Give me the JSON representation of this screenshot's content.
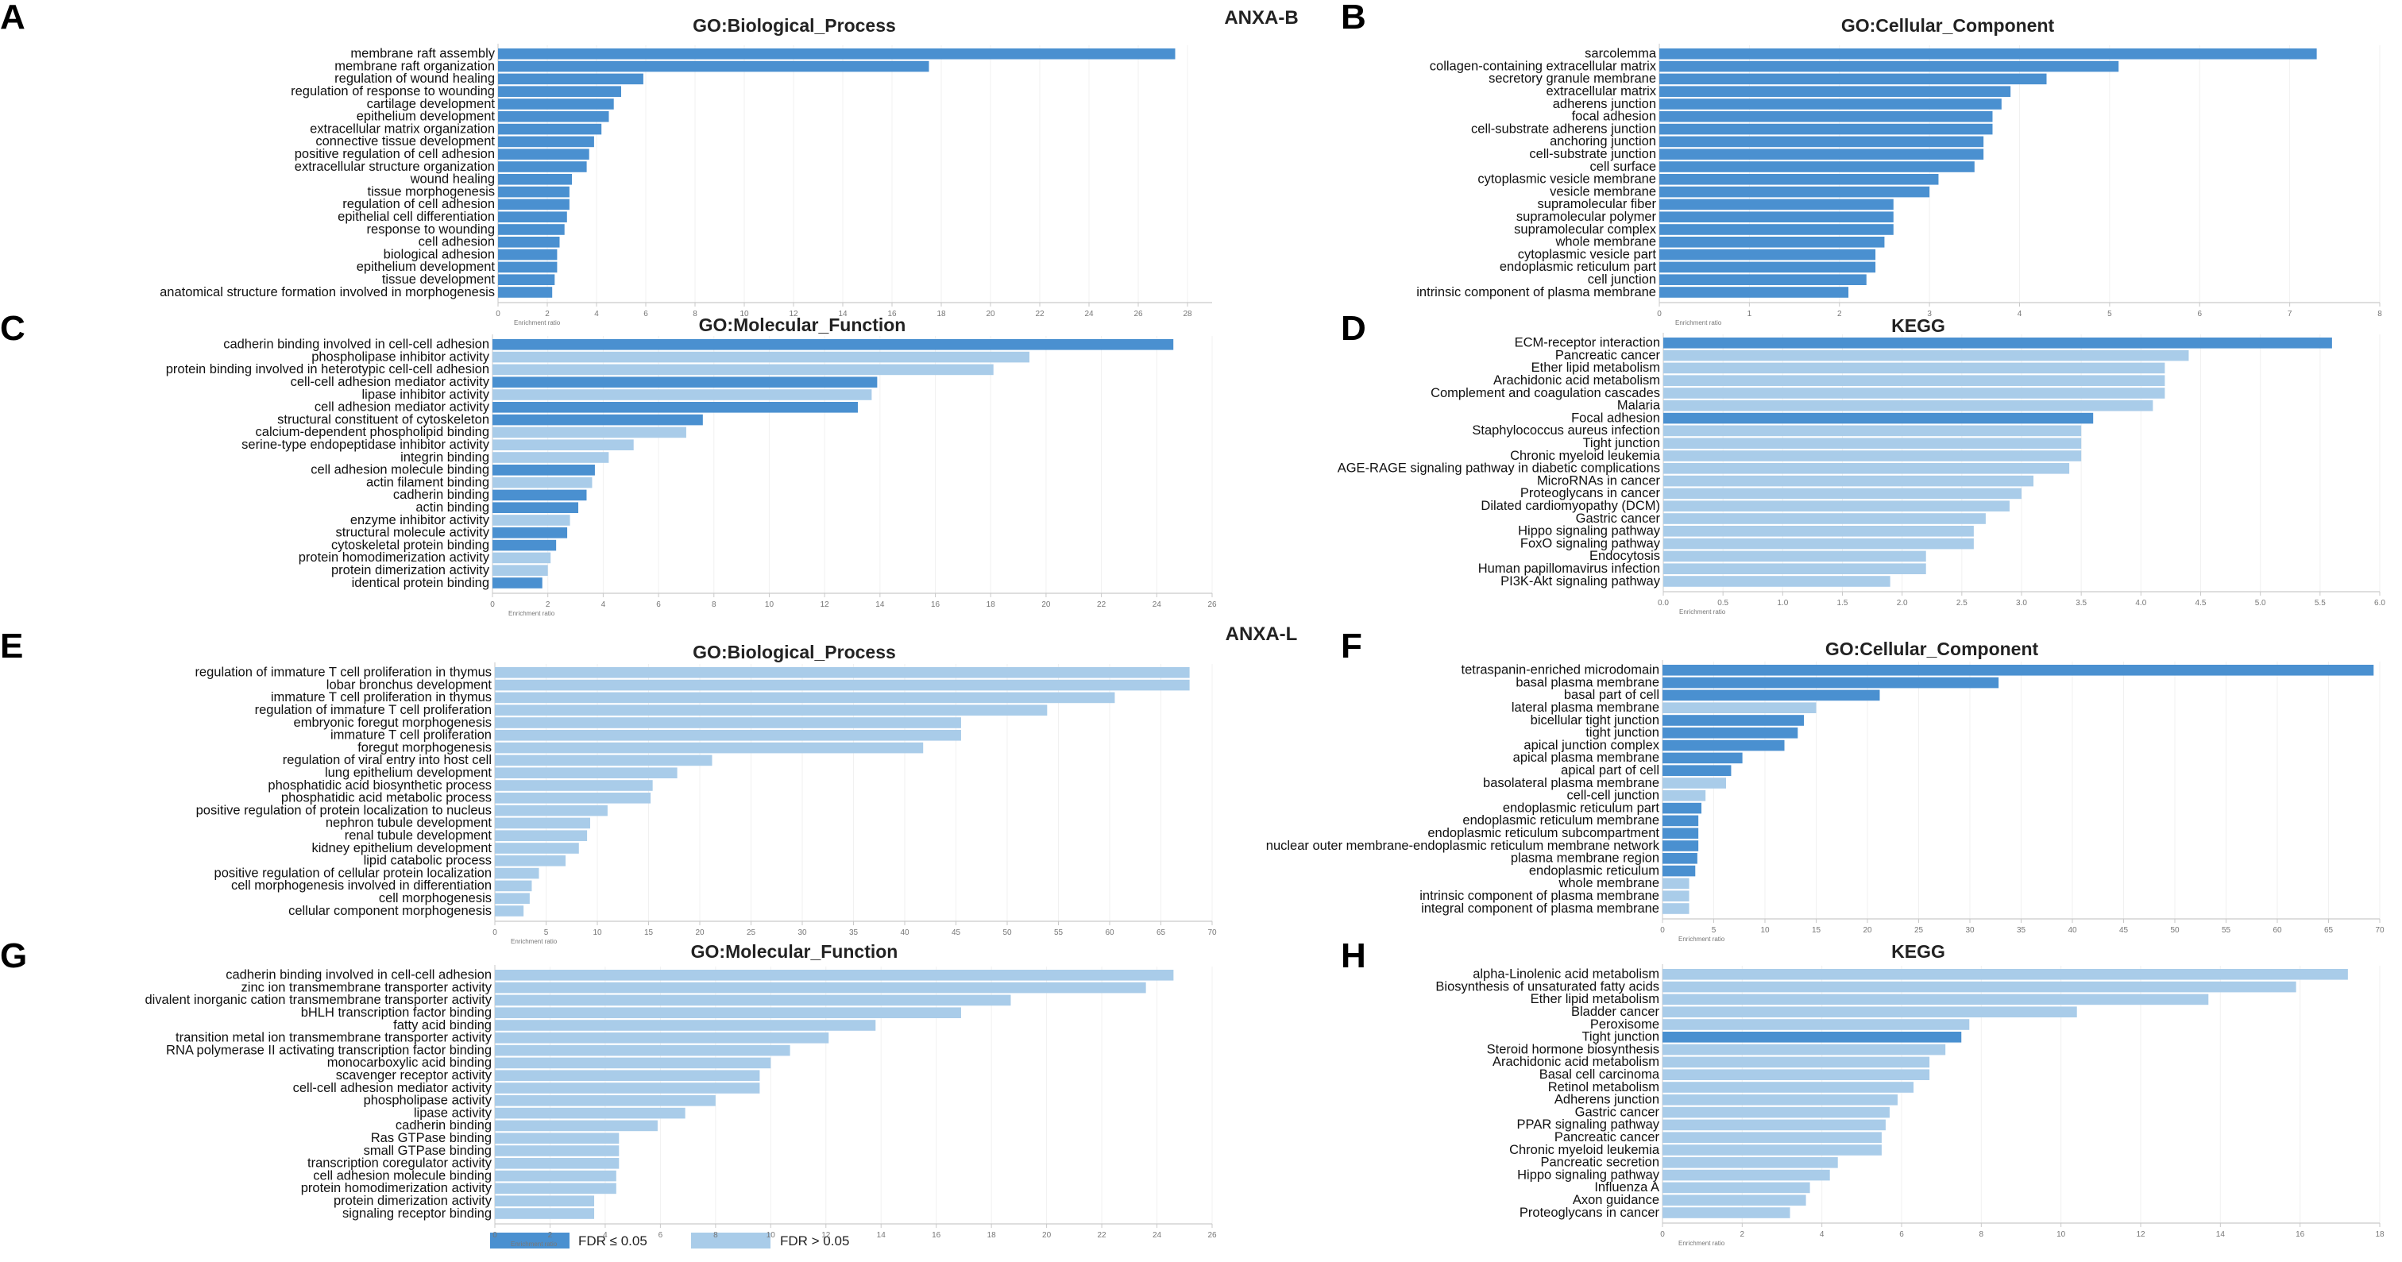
{
  "group_labels": [
    "ANXA-B",
    "ANXA-L"
  ],
  "colors": {
    "sig": "#4a90d0",
    "nonsig": "#a9cce9",
    "axis": "#c9c9c9"
  },
  "legend": [
    {
      "key": "sig",
      "label": "FDR ≤ 0.05"
    },
    {
      "key": "nonsig",
      "label": "FDR > 0.05"
    }
  ],
  "chart_data": [
    {
      "panel": "A",
      "type": "bar",
      "orientation": "horizontal",
      "title": "GO:Biological_Process",
      "xlabel": "Enrichment ratio",
      "xlim": [
        0,
        29
      ],
      "xticks": [
        0,
        2,
        4,
        6,
        8,
        10,
        12,
        14,
        16,
        18,
        20,
        22,
        24,
        26,
        28
      ],
      "categories": [
        "membrane raft assembly",
        "membrane raft organization",
        "regulation of wound healing",
        "regulation of response to wounding",
        "cartilage development",
        "epithelium development",
        "extracellular matrix organization",
        "connective tissue development",
        "positive regulation of cell adhesion",
        "extracellular structure organization",
        "wound healing",
        "tissue morphogenesis",
        "regulation of cell adhesion",
        "epithelial cell differentiation",
        "response to wounding",
        "cell adhesion",
        "biological adhesion",
        "epithelium development",
        "tissue development",
        "anatomical structure formation involved in morphogenesis"
      ],
      "values": [
        27.5,
        17.5,
        5.9,
        5.0,
        4.7,
        4.5,
        4.2,
        3.9,
        3.7,
        3.6,
        3.0,
        2.9,
        2.9,
        2.8,
        2.7,
        2.5,
        2.4,
        2.4,
        2.3,
        2.2
      ],
      "significant": [
        1,
        1,
        1,
        1,
        1,
        1,
        1,
        1,
        1,
        1,
        1,
        1,
        1,
        1,
        1,
        1,
        1,
        1,
        1,
        1
      ]
    },
    {
      "panel": "B",
      "type": "bar",
      "orientation": "horizontal",
      "title": "GO:Cellular_Component",
      "xlabel": "Enrichment ratio",
      "xlim": [
        0,
        8
      ],
      "xticks": [
        0,
        1,
        2,
        3,
        4,
        5,
        6,
        7,
        8
      ],
      "categories": [
        "sarcolemma",
        "collagen-containing extracellular matrix",
        "secretory granule membrane",
        "extracellular matrix",
        "adherens junction",
        "focal adhesion",
        "cell-substrate adherens junction",
        "anchoring junction",
        "cell-substrate junction",
        "cell surface",
        "cytoplasmic vesicle membrane",
        "vesicle membrane",
        "supramolecular fiber",
        "supramolecular polymer",
        "supramolecular complex",
        "whole membrane",
        "cytoplasmic vesicle part",
        "endoplasmic reticulum part",
        "cell junction",
        "intrinsic component of plasma membrane"
      ],
      "values": [
        7.3,
        5.1,
        4.3,
        3.9,
        3.8,
        3.7,
        3.7,
        3.6,
        3.6,
        3.5,
        3.1,
        3.0,
        2.6,
        2.6,
        2.6,
        2.5,
        2.4,
        2.4,
        2.3,
        2.1
      ],
      "significant": [
        1,
        1,
        1,
        1,
        1,
        1,
        1,
        1,
        1,
        1,
        1,
        1,
        1,
        1,
        1,
        1,
        1,
        1,
        1,
        1
      ]
    },
    {
      "panel": "C",
      "type": "bar",
      "orientation": "horizontal",
      "title": "GO:Molecular_Function",
      "xlabel": "Enrichment ratio",
      "xlim": [
        0,
        26
      ],
      "xticks": [
        0,
        2,
        4,
        6,
        8,
        10,
        12,
        14,
        16,
        18,
        20,
        22,
        24,
        26
      ],
      "categories": [
        "cadherin binding involved in cell-cell adhesion",
        "phospholipase inhibitor activity",
        "protein binding involved in heterotypic cell-cell adhesion",
        "cell-cell adhesion mediator activity",
        "lipase inhibitor activity",
        "cell adhesion mediator activity",
        "structural constituent of cytoskeleton",
        "calcium-dependent phospholipid binding",
        "serine-type endopeptidase inhibitor activity",
        "integrin binding",
        "cell adhesion molecule binding",
        "actin filament binding",
        "cadherin binding",
        "actin binding",
        "enzyme inhibitor activity",
        "structural molecule activity",
        "cytoskeletal protein binding",
        "protein homodimerization activity",
        "protein dimerization activity",
        "identical protein binding"
      ],
      "values": [
        24.6,
        19.4,
        18.1,
        13.9,
        13.7,
        13.2,
        7.6,
        7.0,
        5.1,
        4.2,
        3.7,
        3.6,
        3.4,
        3.1,
        2.8,
        2.7,
        2.3,
        2.1,
        2.0,
        1.8
      ],
      "significant": [
        1,
        0,
        0,
        1,
        0,
        1,
        1,
        0,
        0,
        0,
        1,
        0,
        1,
        1,
        0,
        1,
        1,
        0,
        0,
        1
      ]
    },
    {
      "panel": "D",
      "type": "bar",
      "orientation": "horizontal",
      "title": "KEGG",
      "xlabel": "Enrichment ratio",
      "xlim": [
        0,
        6
      ],
      "xticks": [
        0,
        0.5,
        1,
        1.5,
        2,
        2.5,
        3,
        3.5,
        4,
        4.5,
        5,
        5.5,
        6
      ],
      "tick_labels": [
        "0.0",
        "0.5",
        "1.0",
        "1.5",
        "2.0",
        "2.5",
        "3.0",
        "3.5",
        "4.0",
        "4.5",
        "5.0",
        "5.5",
        "6.0"
      ],
      "categories": [
        "ECM-receptor interaction",
        "Pancreatic cancer",
        "Ether lipid metabolism",
        "Arachidonic acid metabolism",
        "Complement and coagulation cascades",
        "Malaria",
        "Focal adhesion",
        "Staphylococcus aureus infection",
        "Tight junction",
        "Chronic myeloid leukemia",
        "AGE-RAGE signaling pathway in diabetic complications",
        "MicroRNAs in cancer",
        "Proteoglycans in cancer",
        "Dilated cardiomyopathy (DCM)",
        "Gastric cancer",
        "Hippo signaling pathway",
        "FoxO signaling pathway",
        "Endocytosis",
        "Human papillomavirus infection",
        "PI3K-Akt signaling pathway"
      ],
      "values": [
        5.6,
        4.4,
        4.2,
        4.2,
        4.2,
        4.1,
        3.6,
        3.5,
        3.5,
        3.5,
        3.4,
        3.1,
        3.0,
        2.9,
        2.7,
        2.6,
        2.6,
        2.2,
        2.2,
        1.9
      ],
      "significant": [
        1,
        0,
        0,
        0,
        0,
        0,
        1,
        0,
        0,
        0,
        0,
        0,
        0,
        0,
        0,
        0,
        0,
        0,
        0,
        0
      ]
    },
    {
      "panel": "E",
      "type": "bar",
      "orientation": "horizontal",
      "title": "GO:Biological_Process",
      "xlabel": "Enrichment ratio",
      "xlim": [
        0,
        70
      ],
      "xticks": [
        0,
        5,
        10,
        15,
        20,
        25,
        30,
        35,
        40,
        45,
        50,
        55,
        60,
        65,
        70
      ],
      "categories": [
        "regulation of immature T cell proliferation in thymus",
        "lobar bronchus development",
        "immature T cell proliferation in thymus",
        "regulation of immature T cell proliferation",
        "embryonic foregut morphogenesis",
        "immature T cell proliferation",
        "foregut morphogenesis",
        "regulation of viral entry into host cell",
        "lung epithelium development",
        "phosphatidic acid biosynthetic process",
        "phosphatidic acid metabolic process",
        "positive regulation of protein localization to nucleus",
        "nephron tubule development",
        "renal tubule development",
        "kidney epithelium development",
        "lipid catabolic process",
        "positive regulation of cellular protein localization",
        "cell morphogenesis involved in differentiation",
        "cell morphogenesis",
        "cellular component morphogenesis"
      ],
      "values": [
        67.8,
        67.8,
        60.5,
        53.9,
        45.5,
        45.5,
        41.8,
        21.2,
        17.8,
        15.4,
        15.2,
        11.0,
        9.3,
        9.0,
        8.2,
        6.9,
        4.3,
        3.6,
        3.4,
        2.8
      ],
      "significant": [
        0,
        0,
        0,
        0,
        0,
        0,
        0,
        0,
        0,
        0,
        0,
        0,
        0,
        0,
        0,
        0,
        0,
        0,
        0,
        0
      ]
    },
    {
      "panel": "F",
      "type": "bar",
      "orientation": "horizontal",
      "title": "GO:Cellular_Component",
      "xlabel": "Enrichment ratio",
      "xlim": [
        0,
        70
      ],
      "xticks": [
        0,
        5,
        10,
        15,
        20,
        25,
        30,
        35,
        40,
        45,
        50,
        55,
        60,
        65,
        70
      ],
      "categories": [
        "tetraspanin-enriched microdomain",
        "basal plasma membrane",
        "basal part of cell",
        "lateral plasma membrane",
        "bicellular tight junction",
        "tight junction",
        "apical junction complex",
        "apical plasma membrane",
        "apical part of cell",
        "basolateral plasma membrane",
        "cell-cell junction",
        "endoplasmic reticulum part",
        "endoplasmic reticulum membrane",
        "endoplasmic reticulum subcompartment",
        "nuclear outer membrane-endoplasmic reticulum membrane network",
        "plasma membrane region",
        "endoplasmic reticulum",
        "whole membrane",
        "intrinsic component of plasma membrane",
        "integral component of plasma membrane"
      ],
      "values": [
        69.4,
        32.8,
        21.2,
        15.0,
        13.8,
        13.2,
        11.9,
        7.8,
        6.7,
        6.2,
        4.2,
        3.8,
        3.5,
        3.5,
        3.5,
        3.4,
        3.2,
        2.6,
        2.6,
        2.6
      ],
      "significant": [
        1,
        1,
        1,
        0,
        1,
        1,
        1,
        1,
        1,
        0,
        0,
        1,
        1,
        1,
        1,
        1,
        1,
        0,
        0,
        0
      ]
    },
    {
      "panel": "G",
      "type": "bar",
      "orientation": "horizontal",
      "title": "GO:Molecular_Function",
      "xlabel": "Enrichment ratio",
      "xlim": [
        0,
        26
      ],
      "xticks": [
        0,
        2,
        4,
        6,
        8,
        10,
        12,
        14,
        16,
        18,
        20,
        22,
        24,
        26
      ],
      "categories": [
        "cadherin binding involved in cell-cell adhesion",
        "zinc ion transmembrane transporter activity",
        "divalent inorganic cation transmembrane transporter activity",
        "bHLH transcription factor binding",
        "fatty acid binding",
        "transition metal ion transmembrane transporter activity",
        "RNA polymerase II activating transcription factor binding",
        "monocarboxylic acid binding",
        "scavenger receptor activity",
        "cell-cell adhesion mediator activity",
        "phospholipase activity",
        "lipase activity",
        "cadherin binding",
        "Ras GTPase binding",
        "small GTPase binding",
        "transcription coregulator activity",
        "cell adhesion molecule binding",
        "protein homodimerization activity",
        "protein dimerization activity",
        "signaling receptor binding"
      ],
      "values": [
        24.6,
        23.6,
        18.7,
        16.9,
        13.8,
        12.1,
        10.7,
        10.0,
        9.6,
        9.6,
        8.0,
        6.9,
        5.9,
        4.5,
        4.5,
        4.5,
        4.4,
        4.4,
        3.6,
        3.6
      ],
      "significant": [
        0,
        0,
        0,
        0,
        0,
        0,
        0,
        0,
        0,
        0,
        0,
        0,
        0,
        0,
        0,
        0,
        0,
        0,
        0,
        0
      ]
    },
    {
      "panel": "H",
      "type": "bar",
      "orientation": "horizontal",
      "title": "KEGG",
      "xlabel": "Enrichment ratio",
      "xlim": [
        0,
        18
      ],
      "xticks": [
        0,
        2,
        4,
        6,
        8,
        10,
        12,
        14,
        16,
        18
      ],
      "categories": [
        "alpha-Linolenic acid metabolism",
        "Biosynthesis of unsaturated fatty acids",
        "Ether lipid metabolism",
        "Bladder cancer",
        "Peroxisome",
        "Tight junction",
        "Steroid hormone biosynthesis",
        "Arachidonic acid metabolism",
        "Basal cell carcinoma",
        "Retinol metabolism",
        "Adherens junction",
        "Gastric cancer",
        "PPAR signaling pathway",
        "Pancreatic cancer",
        "Chronic myeloid leukemia",
        "Pancreatic secretion",
        "Hippo signaling pathway",
        "Influenza A",
        "Axon guidance",
        "Proteoglycans in cancer"
      ],
      "values": [
        17.2,
        15.9,
        13.7,
        10.4,
        7.7,
        7.5,
        7.1,
        6.7,
        6.7,
        6.3,
        5.9,
        5.7,
        5.6,
        5.5,
        5.5,
        4.4,
        4.2,
        3.7,
        3.6,
        3.2
      ],
      "significant": [
        0,
        0,
        0,
        0,
        0,
        1,
        0,
        0,
        0,
        0,
        0,
        0,
        0,
        0,
        0,
        0,
        0,
        0,
        0,
        0
      ]
    }
  ]
}
